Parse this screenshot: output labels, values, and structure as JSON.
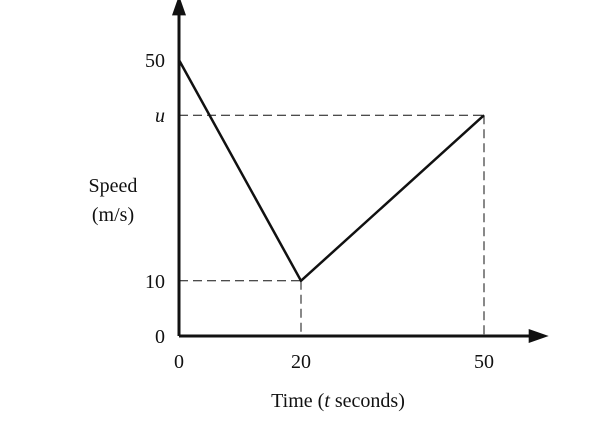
{
  "chart_data": {
    "type": "line",
    "xlabel": "Time (",
    "xlabel_var": "t",
    "xlabel_rest": " seconds)",
    "ylabel_line1": "Speed",
    "ylabel_line2": "(m/s)",
    "x_ticks": [
      {
        "value": 0,
        "label": "0"
      },
      {
        "value": 20,
        "label": "20"
      },
      {
        "value": 50,
        "label": "50"
      }
    ],
    "y_ticks": [
      {
        "value": 0,
        "label": "0"
      },
      {
        "value": 10,
        "label": "10"
      },
      {
        "value": 40,
        "label": "u",
        "italic": true
      },
      {
        "value": 50,
        "label": "50"
      }
    ],
    "xlim": [
      0,
      57
    ],
    "ylim": [
      0,
      55
    ],
    "series": [
      {
        "x": [
          0,
          20,
          50
        ],
        "y": [
          50,
          10,
          40
        ]
      }
    ],
    "guides": [
      {
        "x": 20,
        "y": 10
      },
      {
        "x": 50,
        "y": 40
      }
    ],
    "colors": {
      "line": "#111111",
      "axis": "#111111"
    }
  }
}
